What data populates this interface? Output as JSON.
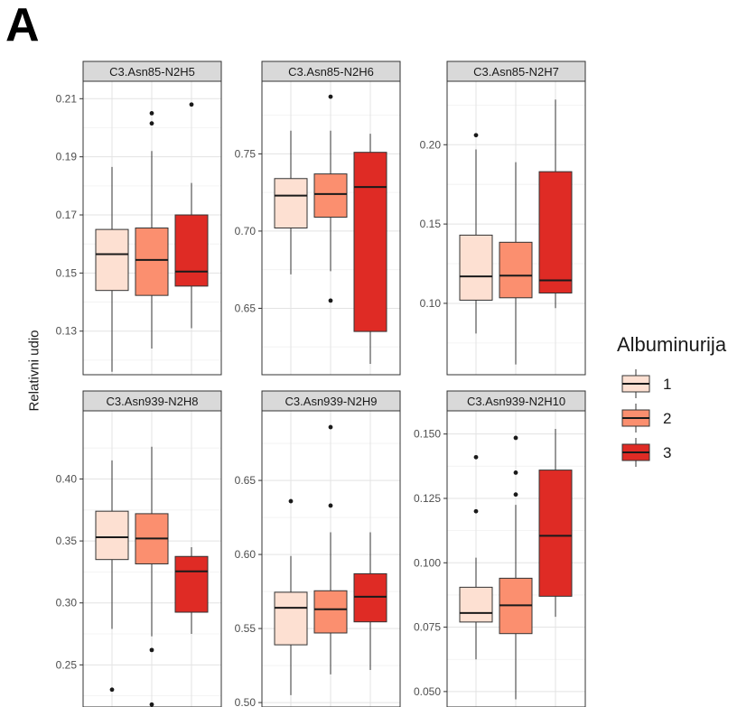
{
  "figure": {
    "panel_label": "A",
    "ylabel": "Relativni udio"
  },
  "legend": {
    "title": "Albuminurija",
    "items": [
      {
        "label": "1",
        "color": "#fde0d2"
      },
      {
        "label": "2",
        "color": "#fb8f6f"
      },
      {
        "label": "3",
        "color": "#df2b25"
      }
    ]
  },
  "chart_data": [
    {
      "type": "box",
      "title": "C3.Asn85-N2H5",
      "ylim": [
        0.115,
        0.216
      ],
      "yticks": [
        0.13,
        0.15,
        0.17,
        0.19,
        0.21
      ],
      "yticklabels": [
        "0.13",
        "0.15",
        "0.17",
        "0.19",
        "0.21"
      ],
      "boxes": [
        {
          "group": "1",
          "min": 0.116,
          "q1": 0.144,
          "median": 0.1565,
          "q3": 0.165,
          "max": 0.1865,
          "outliers": []
        },
        {
          "group": "2",
          "min": 0.124,
          "q1": 0.1423,
          "median": 0.1545,
          "q3": 0.1655,
          "max": 0.192,
          "outliers": [
            0.2015,
            0.205
          ]
        },
        {
          "group": "3",
          "min": 0.131,
          "q1": 0.1455,
          "median": 0.1505,
          "q3": 0.17,
          "max": 0.181,
          "outliers": [
            0.208
          ]
        }
      ]
    },
    {
      "type": "box",
      "title": "C3.Asn85-N2H6",
      "ylim": [
        0.607,
        0.797
      ],
      "yticks": [
        0.65,
        0.7,
        0.75
      ],
      "yticklabels": [
        "0.65",
        "0.70",
        "0.75"
      ],
      "boxes": [
        {
          "group": "1",
          "min": 0.672,
          "q1": 0.702,
          "median": 0.723,
          "q3": 0.734,
          "max": 0.765,
          "outliers": []
        },
        {
          "group": "2",
          "min": 0.674,
          "q1": 0.709,
          "median": 0.724,
          "q3": 0.737,
          "max": 0.765,
          "outliers": [
            0.787,
            0.655
          ]
        },
        {
          "group": "3",
          "min": 0.614,
          "q1": 0.635,
          "median": 0.7285,
          "q3": 0.751,
          "max": 0.763,
          "outliers": []
        }
      ]
    },
    {
      "type": "box",
      "title": "C3.Asn85-N2H7",
      "ylim": [
        0.055,
        0.24
      ],
      "yticks": [
        0.1,
        0.15,
        0.2
      ],
      "yticklabels": [
        "0.10",
        "0.15",
        "0.20"
      ],
      "boxes": [
        {
          "group": "1",
          "min": 0.081,
          "q1": 0.102,
          "median": 0.117,
          "q3": 0.143,
          "max": 0.197,
          "outliers": [
            0.206
          ]
        },
        {
          "group": "2",
          "min": 0.0615,
          "q1": 0.1035,
          "median": 0.1175,
          "q3": 0.1385,
          "max": 0.189,
          "outliers": []
        },
        {
          "group": "3",
          "min": 0.097,
          "q1": 0.1065,
          "median": 0.1145,
          "q3": 0.183,
          "max": 0.2285,
          "outliers": []
        }
      ]
    },
    {
      "type": "box",
      "title": "C3.Asn939-N2H8",
      "ylim": [
        0.216,
        0.455
      ],
      "yticks": [
        0.25,
        0.3,
        0.35,
        0.4
      ],
      "yticklabels": [
        "0.25",
        "0.30",
        "0.35",
        "0.40"
      ],
      "boxes": [
        {
          "group": "1",
          "min": 0.279,
          "q1": 0.335,
          "median": 0.353,
          "q3": 0.374,
          "max": 0.415,
          "outliers": [
            0.23
          ]
        },
        {
          "group": "2",
          "min": 0.273,
          "q1": 0.3315,
          "median": 0.352,
          "q3": 0.372,
          "max": 0.426,
          "outliers": [
            0.262,
            0.218
          ]
        },
        {
          "group": "3",
          "min": 0.275,
          "q1": 0.2925,
          "median": 0.3255,
          "q3": 0.3375,
          "max": 0.345,
          "outliers": []
        }
      ]
    },
    {
      "type": "box",
      "title": "C3.Asn939-N2H9",
      "ylim": [
        0.497,
        0.697
      ],
      "yticks": [
        0.5,
        0.55,
        0.6,
        0.65
      ],
      "yticklabels": [
        "0.50",
        "0.55",
        "0.60",
        "0.65"
      ],
      "boxes": [
        {
          "group": "1",
          "min": 0.505,
          "q1": 0.539,
          "median": 0.564,
          "q3": 0.5745,
          "max": 0.599,
          "outliers": [
            0.636
          ]
        },
        {
          "group": "2",
          "min": 0.519,
          "q1": 0.547,
          "median": 0.563,
          "q3": 0.5755,
          "max": 0.615,
          "outliers": [
            0.633,
            0.686
          ]
        },
        {
          "group": "3",
          "min": 0.522,
          "q1": 0.5545,
          "median": 0.5715,
          "q3": 0.587,
          "max": 0.615,
          "outliers": []
        }
      ]
    },
    {
      "type": "box",
      "title": "C3.Asn939-N2H10",
      "ylim": [
        0.044,
        0.159
      ],
      "yticks": [
        0.05,
        0.075,
        0.1,
        0.125,
        0.15
      ],
      "yticklabels": [
        "0.050",
        "0.075",
        "0.100",
        "0.125",
        "0.150"
      ],
      "boxes": [
        {
          "group": "1",
          "min": 0.0625,
          "q1": 0.077,
          "median": 0.0805,
          "q3": 0.0905,
          "max": 0.102,
          "outliers": [
            0.12,
            0.141
          ]
        },
        {
          "group": "2",
          "min": 0.047,
          "q1": 0.0725,
          "median": 0.0835,
          "q3": 0.094,
          "max": 0.1225,
          "outliers": [
            0.1265,
            0.135,
            0.1485
          ]
        },
        {
          "group": "3",
          "min": 0.079,
          "q1": 0.087,
          "median": 0.1105,
          "q3": 0.136,
          "max": 0.152,
          "outliers": []
        }
      ]
    }
  ]
}
